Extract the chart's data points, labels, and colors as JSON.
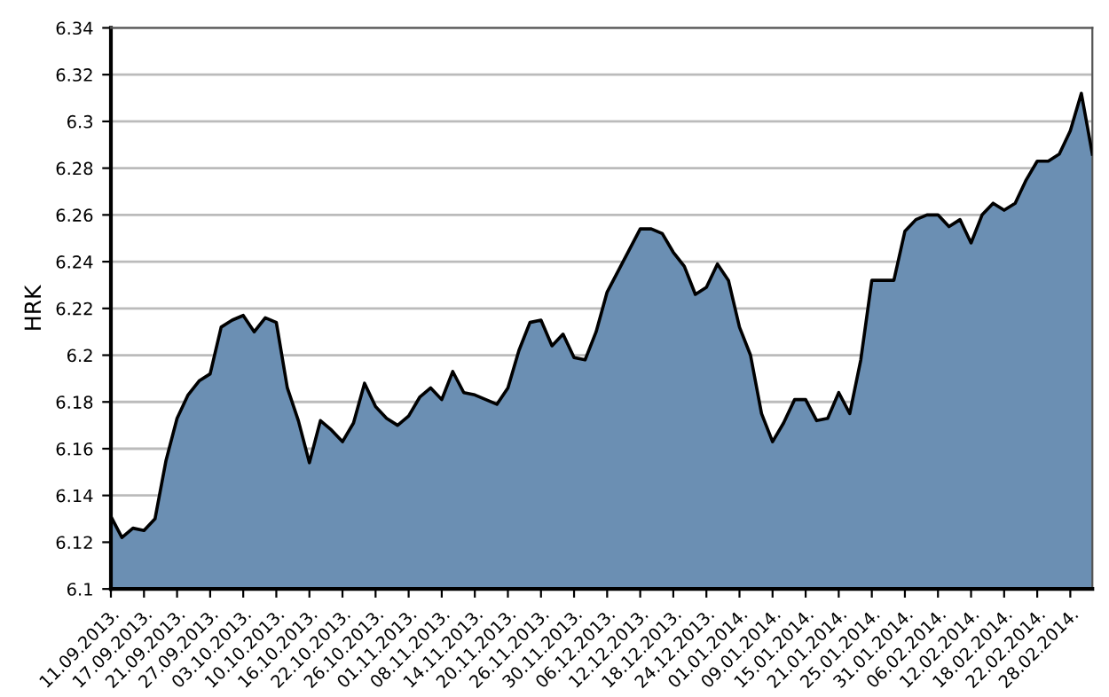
{
  "chart_data": {
    "type": "area",
    "ylabel": "HRK",
    "categories": [
      "11.09.2013.",
      null,
      null,
      "17.09.2013.",
      null,
      null,
      "21.09.2013.",
      null,
      null,
      "27.09.2013.",
      null,
      null,
      "03.10.2013.",
      null,
      null,
      "10.10.2013.",
      null,
      null,
      "16.10.2013.",
      null,
      null,
      "22.10.2013.",
      null,
      null,
      "26.10.2013.",
      null,
      null,
      "01.11.2013.",
      null,
      null,
      "08.11.2013.",
      null,
      null,
      "14.11.2013.",
      null,
      null,
      "20.11.2013.",
      null,
      null,
      "26.11.2013.",
      null,
      null,
      "30.11.2013.",
      null,
      null,
      "06.12.2013.",
      null,
      null,
      "12.12.2013.",
      null,
      null,
      "18.12.2013.",
      null,
      null,
      "24.12.2013.",
      null,
      null,
      "01.01.2014.",
      null,
      null,
      "09.01.2014.",
      null,
      null,
      "15.01.2014.",
      null,
      null,
      "21.01.2014.",
      null,
      null,
      "25.01.2014.",
      null,
      null,
      "31.01.2014.",
      null,
      null,
      "06.02.2014.",
      null,
      null,
      "12.02.2014.",
      null,
      null,
      "18.02.2014.",
      null,
      null,
      "22.02.2014.",
      null,
      null,
      "28.02.2014.",
      null,
      null
    ],
    "series": [
      {
        "color": "#6b8fb3",
        "values": [
          6.131,
          6.122,
          6.126,
          6.125,
          6.13,
          6.155,
          6.173,
          6.183,
          6.189,
          6.192,
          6.212,
          6.215,
          6.217,
          6.21,
          6.216,
          6.214,
          6.186,
          6.172,
          6.154,
          6.172,
          6.168,
          6.163,
          6.171,
          6.188,
          6.178,
          6.173,
          6.17,
          6.174,
          6.182,
          6.186,
          6.181,
          6.193,
          6.184,
          6.183,
          6.181,
          6.179,
          6.186,
          6.202,
          6.214,
          6.215,
          6.204,
          6.209,
          6.199,
          6.198,
          6.21,
          6.227,
          6.236,
          6.245,
          6.254,
          6.254,
          6.252,
          6.244,
          6.238,
          6.226,
          6.229,
          6.239,
          6.232,
          6.212,
          6.2,
          6.175,
          6.163,
          6.171,
          6.181,
          6.181,
          6.172,
          6.173,
          6.184,
          6.175,
          6.198,
          6.232,
          6.232,
          6.232,
          6.253,
          6.258,
          6.26,
          6.26,
          6.255,
          6.258,
          6.248,
          6.26,
          6.265,
          6.262,
          6.265,
          6.275,
          6.283,
          6.283,
          6.286,
          6.296,
          6.312,
          6.286
        ]
      }
    ],
    "ylim": [
      6.1,
      6.34
    ],
    "yticks": [
      6.1,
      6.12,
      6.14,
      6.16,
      6.18,
      6.2,
      6.22,
      6.24,
      6.26,
      6.28,
      6.3,
      6.32,
      6.34
    ],
    "grid": "y",
    "legend": false
  }
}
